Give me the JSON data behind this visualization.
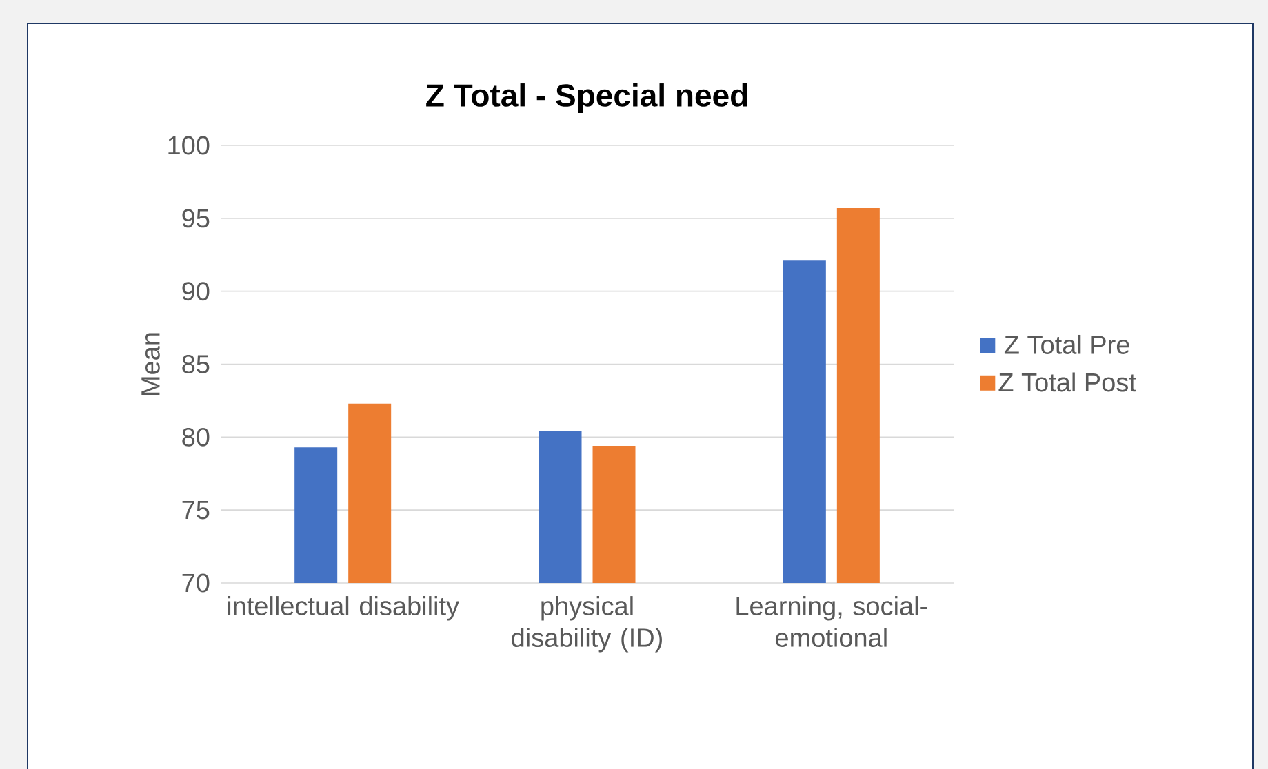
{
  "chart_data": {
    "type": "bar",
    "title": "Z Total - Special need",
    "ylabel": "Mean",
    "categories": [
      "intellectual disability",
      "physical disability (ID)",
      "Learning, social-emotional"
    ],
    "series": [
      {
        "name": "Z Total Pre",
        "color": "#4472c4",
        "values": [
          79.3,
          80.4,
          92.1
        ]
      },
      {
        "name": "Z Total Post",
        "color": "#ed7d31",
        "values": [
          82.3,
          79.4,
          95.7
        ]
      }
    ],
    "ylim": [
      70,
      100
    ],
    "yticks": [
      70,
      75,
      80,
      85,
      90,
      95,
      100
    ],
    "grid": "y",
    "legend": "right"
  }
}
